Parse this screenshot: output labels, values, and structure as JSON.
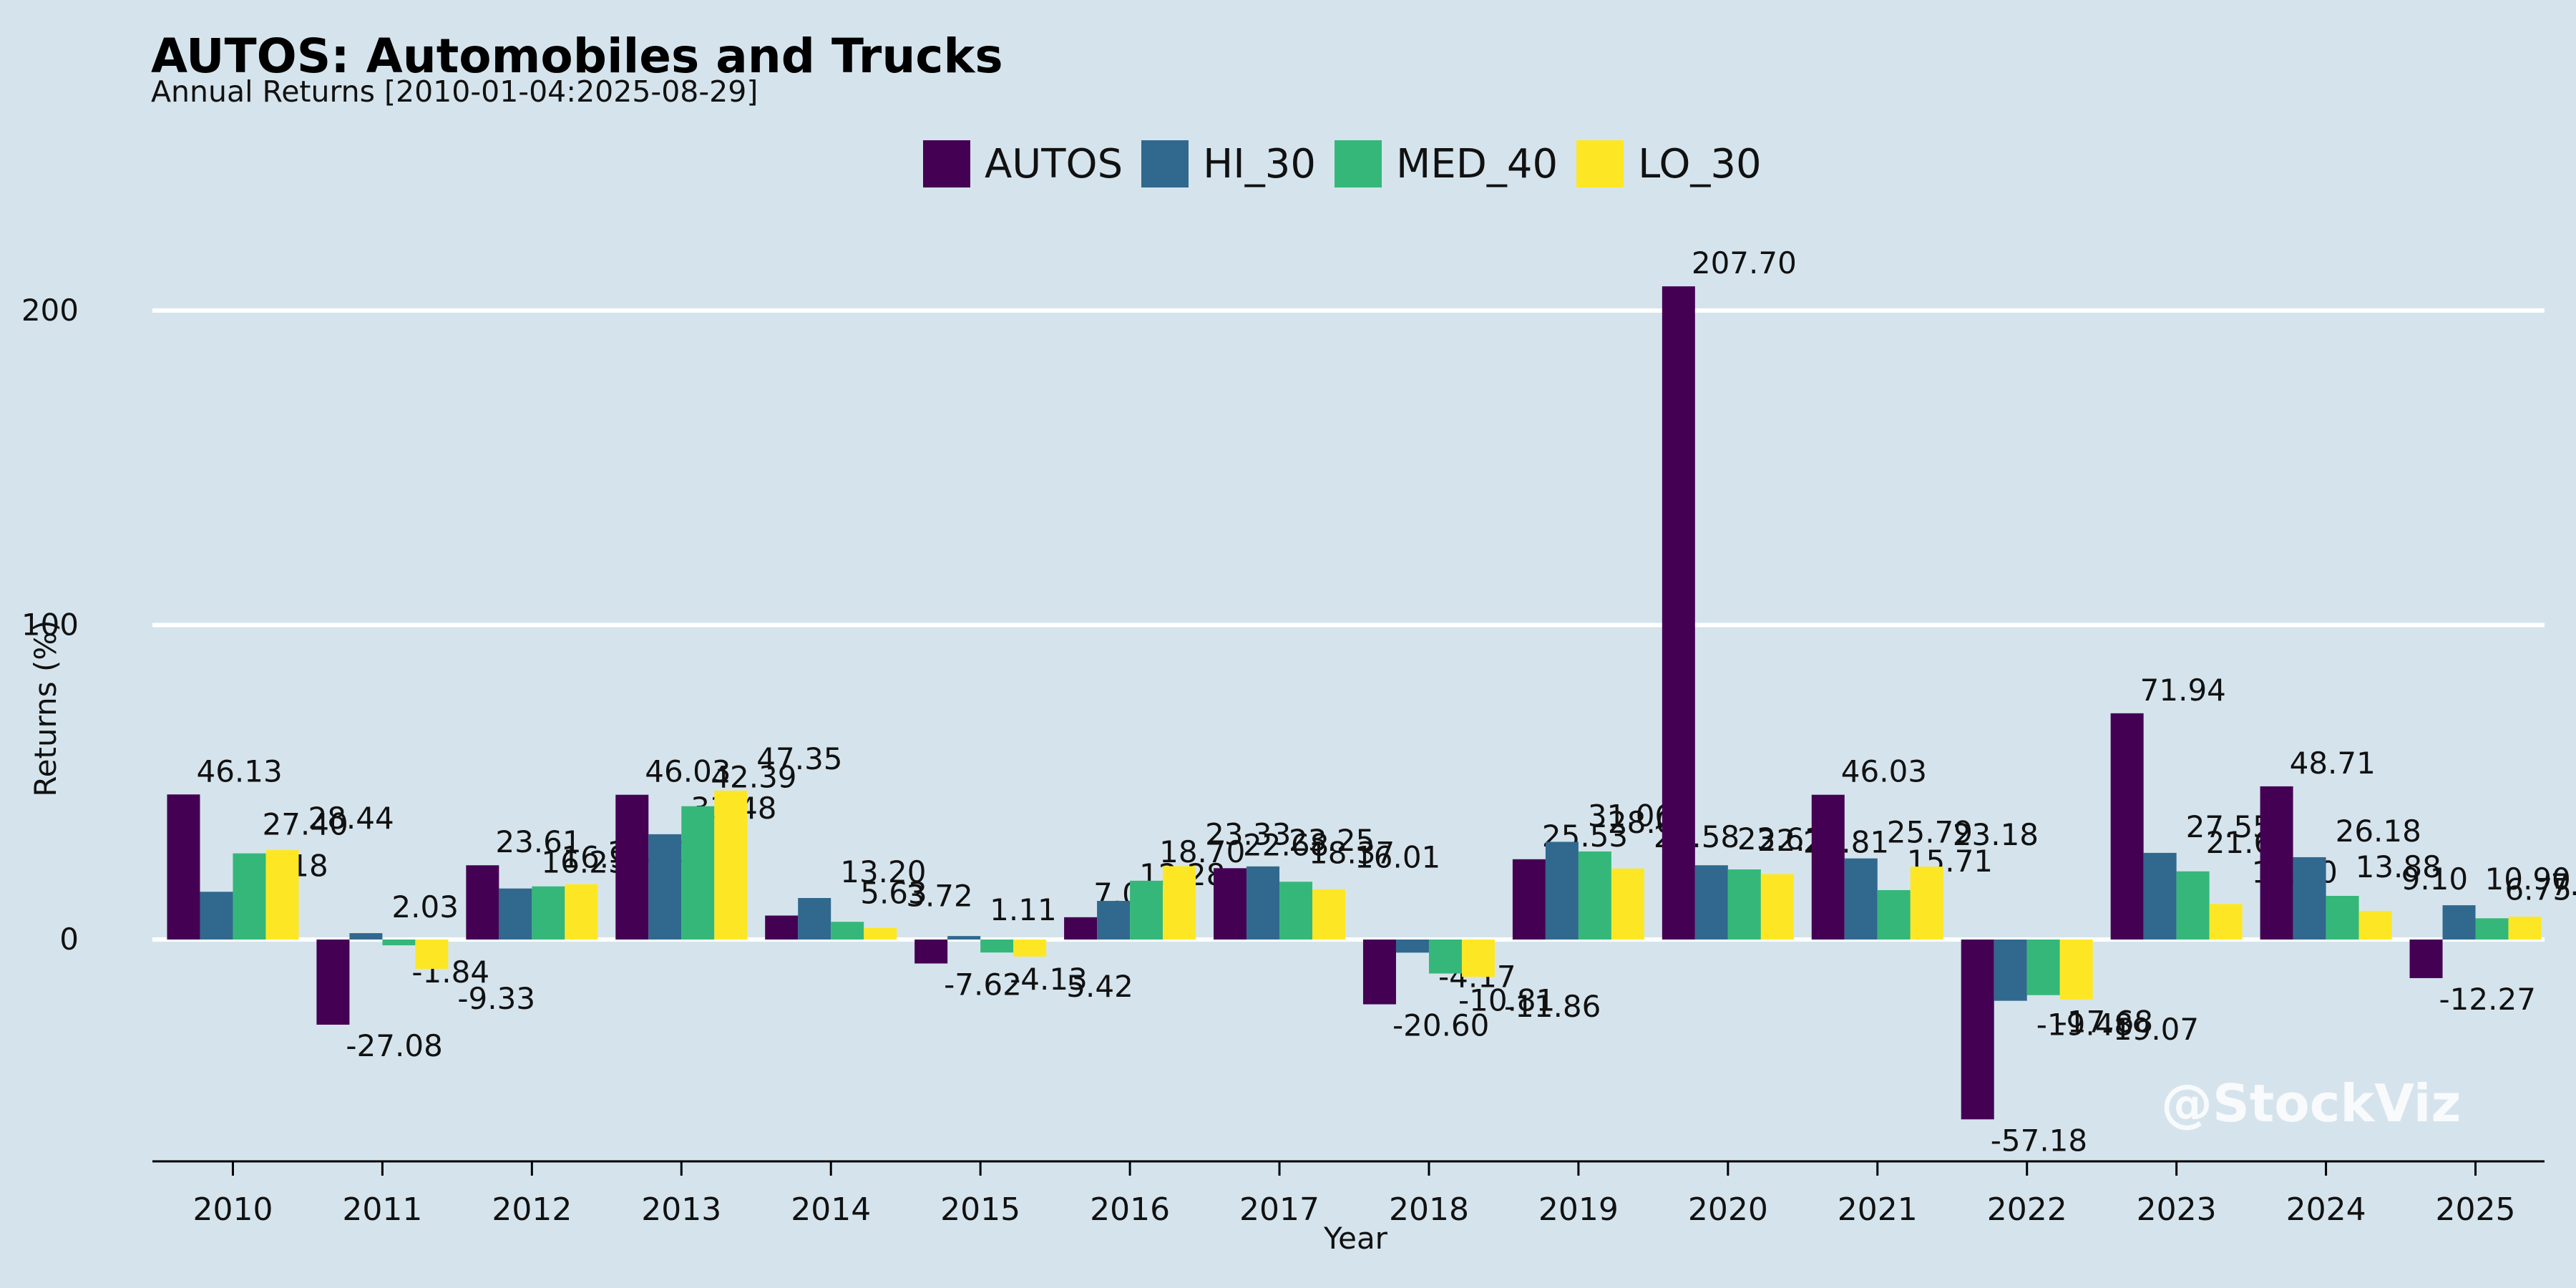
{
  "chart_data": {
    "type": "bar",
    "title": "AUTOS: Automobiles and Trucks",
    "subtitle": "Annual Returns [2010-01-04:2025-08-29]",
    "xlabel": "Year",
    "ylabel": "Returns (%)",
    "ylim": [
      -70,
      225
    ],
    "yticks": [
      0,
      100,
      200
    ],
    "grid": "horizontal",
    "legend_position": "top-center",
    "categories": [
      "2010",
      "2011",
      "2012",
      "2013",
      "2014",
      "2015",
      "2016",
      "2017",
      "2018",
      "2019",
      "2020",
      "2021",
      "2022",
      "2023",
      "2024",
      "2025"
    ],
    "series": [
      {
        "name": "AUTOS",
        "color": "#440154",
        "values": [
          46.13,
          -27.08,
          23.61,
          46.03,
          7.62,
          -7.62,
          7.09,
          22.68,
          -20.6,
          25.53,
          207.7,
          46.03,
          -57.18,
          71.94,
          48.71,
          -12.27
        ],
        "labels": [
          "46.13",
          "-27.08",
          "23.61",
          "46.03",
          "",
          "-7.62",
          "7.09",
          "22.68",
          "-20.60",
          "25.53",
          "207.70",
          "46.03",
          "-57.18",
          "71.94",
          "48.71",
          "-12.27"
        ]
      },
      {
        "name": "HI_30",
        "color": "#31688e",
        "values": [
          15.18,
          2.03,
          16.23,
          33.48,
          13.2,
          1.11,
          12.28,
          23.25,
          -4.17,
          31.06,
          23.61,
          25.79,
          -19.48,
          27.55,
          26.18,
          10.9
        ],
        "labels": [
          "15.18",
          "2.03",
          "16.23",
          "33.48",
          "13.20",
          "1.11",
          "12.28",
          "23.25",
          "-4.17",
          "31.06",
          "23.61",
          "25.79",
          "-19.48",
          "27.55",
          "26.18",
          "10.90"
        ]
      },
      {
        "name": "MED_40",
        "color": "#35b779",
        "values": [
          27.4,
          -1.84,
          16.9,
          42.39,
          5.63,
          -4.13,
          18.7,
          18.37,
          -10.81,
          28.0,
          22.29,
          15.71,
          -17.68,
          21.67,
          13.88,
          6.75
        ],
        "labels": [
          "27.40",
          "-1.84",
          "16.90",
          "42.39",
          "5.63",
          "-4.13",
          "18.70",
          "18.37",
          "-10.81",
          "28.00",
          "22.29",
          "15.71",
          "-17.68",
          "21.67",
          "13.88",
          "6.75"
        ]
      },
      {
        "name": "LO_30",
        "color": "#fde725",
        "values": [
          28.44,
          -9.33,
          17.61,
          47.35,
          3.72,
          -5.42,
          23.33,
          16.01,
          -11.86,
          22.58,
          20.81,
          23.18,
          -19.07,
          11.3,
          9.1,
          7.29
        ],
        "labels": [
          "28.44",
          "-9.33",
          "17.61",
          "47.35",
          "3.72",
          "-5.42",
          "23.33",
          "16.01",
          "-11.86",
          "22.58",
          "20.81",
          "23.18",
          "-19.07",
          "11.30",
          "9.10",
          "7.29"
        ]
      }
    ]
  },
  "watermark": "@StockViz"
}
